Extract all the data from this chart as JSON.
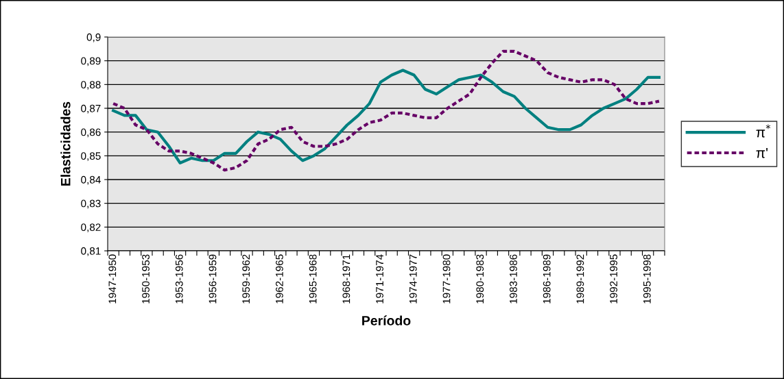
{
  "chart_data": {
    "type": "line",
    "xlabel": "Período",
    "ylabel": "Elasticidades",
    "categories": [
      "1947-1950",
      null,
      null,
      "1950-1953",
      null,
      null,
      "1953-1956",
      null,
      null,
      "1956-1959",
      null,
      null,
      "1959-1962",
      null,
      null,
      "1962-1965",
      null,
      null,
      "1965-1968",
      null,
      null,
      "1968-1971",
      null,
      null,
      "1971-1974",
      null,
      null,
      "1974-1977",
      null,
      null,
      "1977-1980",
      null,
      null,
      "1980-1983",
      null,
      null,
      "1983-1986",
      null,
      null,
      "1986-1989",
      null,
      null,
      "1989-1992",
      null,
      null,
      "1992-1995",
      null,
      null,
      "1995-1998",
      null
    ],
    "series": [
      {
        "name": "π$^{*}$",
        "color": "#008080",
        "line_style": "solid",
        "values": [
          0.869,
          0.867,
          0.867,
          0.861,
          0.86,
          0.854,
          0.847,
          0.849,
          0.848,
          0.848,
          0.851,
          0.851,
          0.856,
          0.86,
          0.859,
          0.857,
          0.852,
          0.848,
          0.85,
          0.853,
          0.858,
          0.863,
          0.867,
          0.872,
          0.881,
          0.884,
          0.886,
          0.884,
          0.878,
          0.876,
          0.879,
          0.882,
          0.883,
          0.884,
          0.881,
          0.877,
          0.875,
          0.87,
          0.866,
          0.862,
          0.861,
          0.861,
          0.863,
          0.867,
          0.87,
          0.872,
          0.874,
          0.878,
          0.883,
          0.883
        ]
      },
      {
        "name": "π'",
        "color": "#660066",
        "line_style": "dashed",
        "values": [
          0.872,
          0.87,
          0.863,
          0.861,
          0.855,
          0.852,
          0.852,
          0.851,
          0.849,
          0.847,
          0.844,
          0.845,
          0.848,
          0.855,
          0.857,
          0.861,
          0.862,
          0.856,
          0.854,
          0.854,
          0.855,
          0.857,
          0.861,
          0.864,
          0.865,
          0.868,
          0.868,
          0.867,
          0.866,
          0.866,
          0.87,
          0.873,
          0.876,
          0.883,
          0.889,
          0.894,
          0.894,
          0.892,
          0.89,
          0.885,
          0.883,
          0.882,
          0.881,
          0.882,
          0.882,
          0.88,
          0.874,
          0.872,
          0.872,
          0.873
        ]
      }
    ],
    "ylim": [
      0.81,
      0.9
    ],
    "yticks": [
      {
        "value": 0.81,
        "label": "0,81"
      },
      {
        "value": 0.82,
        "label": "0,82"
      },
      {
        "value": 0.83,
        "label": "0,83"
      },
      {
        "value": 0.84,
        "label": "0,84"
      },
      {
        "value": 0.85,
        "label": "0,85"
      },
      {
        "value": 0.86,
        "label": "0,86"
      },
      {
        "value": 0.87,
        "label": "0,87"
      },
      {
        "value": 0.88,
        "label": "0,88"
      },
      {
        "value": 0.89,
        "label": "0,89"
      },
      {
        "value": 0.9,
        "label": "0,9"
      }
    ],
    "grid": "y",
    "legend": "right",
    "marker": "none"
  }
}
